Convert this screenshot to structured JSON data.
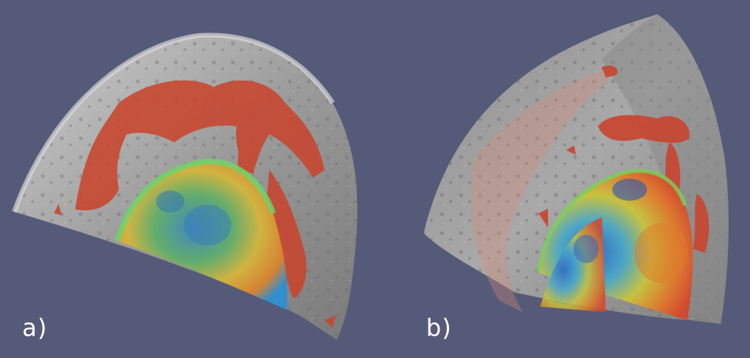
{
  "panels": [
    {
      "label": "a)"
    },
    {
      "label": "b)"
    }
  ],
  "colors": {
    "background": "#555a78",
    "surface_gray": "#9a9a9a",
    "plume_red": "#c8452e",
    "core_blue": "#2f6fc0",
    "core_green": "#6cc45a",
    "core_yellow": "#e8c23a",
    "core_orange": "#e07a2a"
  }
}
